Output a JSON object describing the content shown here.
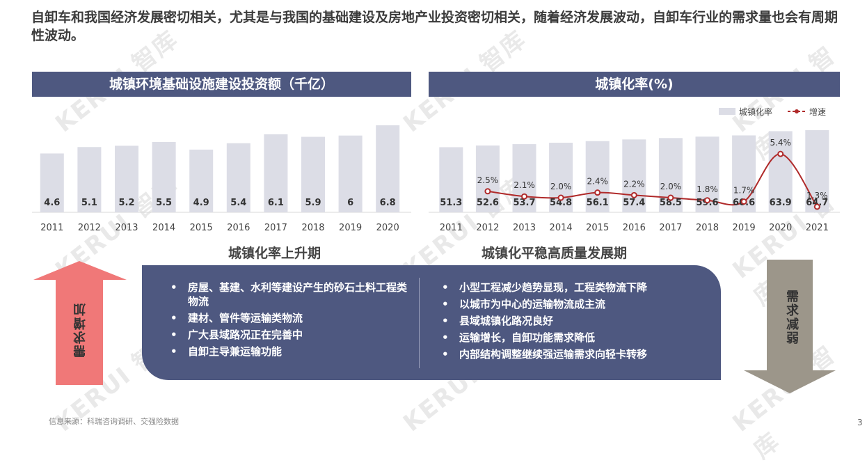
{
  "headline": "自卸车和我国经济发展密切相关，尤其是与我国的基础建设及房地产业投资密切相关，随着经济发展波动，自卸车行业的需求量也会有周期性波动。",
  "watermark": "KERUI 智库",
  "chart_data": [
    {
      "type": "bar",
      "title": "城镇环境基础设施建设投资额（千亿）",
      "categories": [
        "2011",
        "2012",
        "2013",
        "2014",
        "2015",
        "2016",
        "2017",
        "2018",
        "2019",
        "2020"
      ],
      "values": [
        4.6,
        5.1,
        5.2,
        5.5,
        4.9,
        5.4,
        6.1,
        5.9,
        6.0,
        6.8
      ],
      "bar_color": "#dcdde6"
    },
    {
      "type": "bar+line",
      "title": "城镇化率(%)",
      "categories": [
        "2011",
        "2012",
        "2013",
        "2014",
        "2015",
        "2016",
        "2017",
        "2018",
        "2019",
        "2020",
        "2021"
      ],
      "series": [
        {
          "name": "城镇化率",
          "type": "bar",
          "values": [
            51.3,
            52.6,
            53.7,
            54.8,
            56.1,
            57.4,
            58.5,
            59.6,
            60.6,
            63.9,
            64.7
          ],
          "color": "#dcdde6"
        },
        {
          "name": "增速",
          "type": "line",
          "values": [
            null,
            2.5,
            2.1,
            2.0,
            2.4,
            2.2,
            2.0,
            1.8,
            1.7,
            5.4,
            1.3
          ],
          "labels": [
            null,
            "2.5%",
            "2.1%",
            "2.0%",
            "2.4%",
            "2.2%",
            "2.0%",
            "1.8%",
            "1.7%",
            "5.4%",
            "1.3%"
          ],
          "color": "#b02a2a"
        }
      ],
      "legend": "top-right"
    }
  ],
  "phases": {
    "left": "城镇化率上升期",
    "right": "城镇化平稳高质量发展期"
  },
  "panel": {
    "left_items": [
      "房屋、基建、水利等建设产生的砂石土料工程类物流",
      "建材、管件等运输类物流",
      "广大县域路况正在完善中",
      "自卸主导兼运输功能"
    ],
    "right_items": [
      "小型工程减少趋势显现，工程类物流下降",
      "以城市为中心的运输物流成主流",
      "县域城镇化路况良好",
      "运输增长，自卸功能需求降低",
      "内部结构调整继续强运输需求向轻卡转移"
    ]
  },
  "arrows": {
    "up_label": "需求增加",
    "up_color": "#f07878",
    "down_label": "需求减弱",
    "down_color": "#9c968a"
  },
  "footer": "信息来源：科瑞咨询调研、交强险数据",
  "page_number": "3",
  "colors": {
    "title_bar": "#4e5880",
    "panel": "#4e5880",
    "line": "#b02a2a"
  }
}
